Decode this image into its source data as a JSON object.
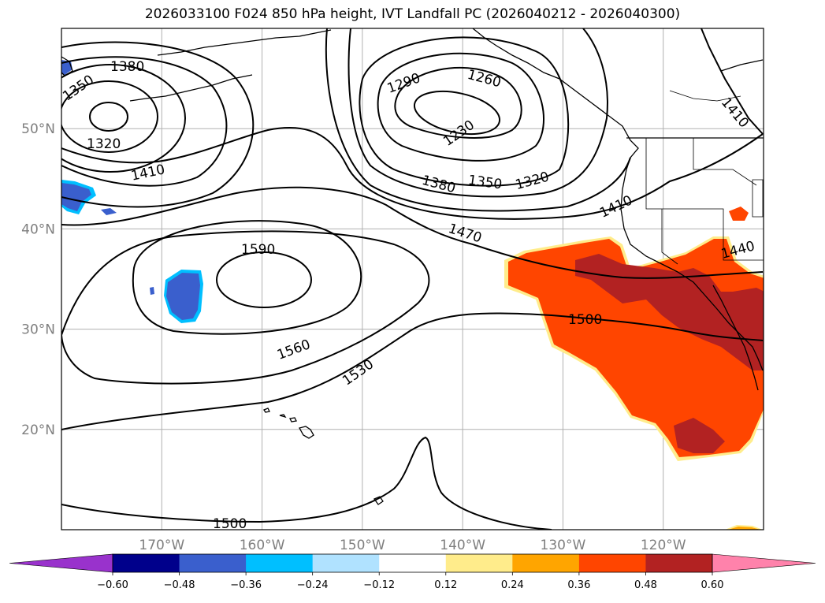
{
  "title": "2026033100 F024 850 hPa height, IVT Landfall PC (2026040212 - 2026040300)",
  "map": {
    "lat_labels": [
      {
        "text": "50°N",
        "lat": 50
      },
      {
        "text": "40°N",
        "lat": 40
      },
      {
        "text": "30°N",
        "lat": 30
      },
      {
        "text": "20°N",
        "lat": 20
      }
    ],
    "lon_labels": [
      {
        "text": "170°W",
        "lon": -170
      },
      {
        "text": "160°W",
        "lon": -160
      },
      {
        "text": "150°W",
        "lon": -150
      },
      {
        "text": "140°W",
        "lon": -140
      },
      {
        "text": "130°W",
        "lon": -130
      },
      {
        "text": "120°W",
        "lon": -120
      }
    ],
    "extent": {
      "lon_min": -180,
      "lon_max": -110,
      "lat_min": 10,
      "lat_max": 60
    },
    "contour_labels": [
      "1380",
      "1350",
      "1320",
      "1410",
      "1290",
      "1260",
      "1230",
      "1380",
      "1350",
      "1320",
      "1410",
      "1470",
      "1590",
      "1560",
      "1530",
      "1500",
      "1500",
      "1410",
      "1440"
    ]
  },
  "colorbar": {
    "colors": [
      "#9932cc",
      "#00008b",
      "#3a5fcd",
      "#00bfff",
      "#b0e2ff",
      "#ffffff",
      "#ffec8b",
      "#ffa500",
      "#ff4500",
      "#b22222",
      "#ff82ab"
    ],
    "ticks": [
      "−0.60",
      "−0.48",
      "−0.36",
      "−0.24",
      "−0.12",
      "0.12",
      "0.24",
      "0.36",
      "0.48",
      "0.60"
    ]
  }
}
